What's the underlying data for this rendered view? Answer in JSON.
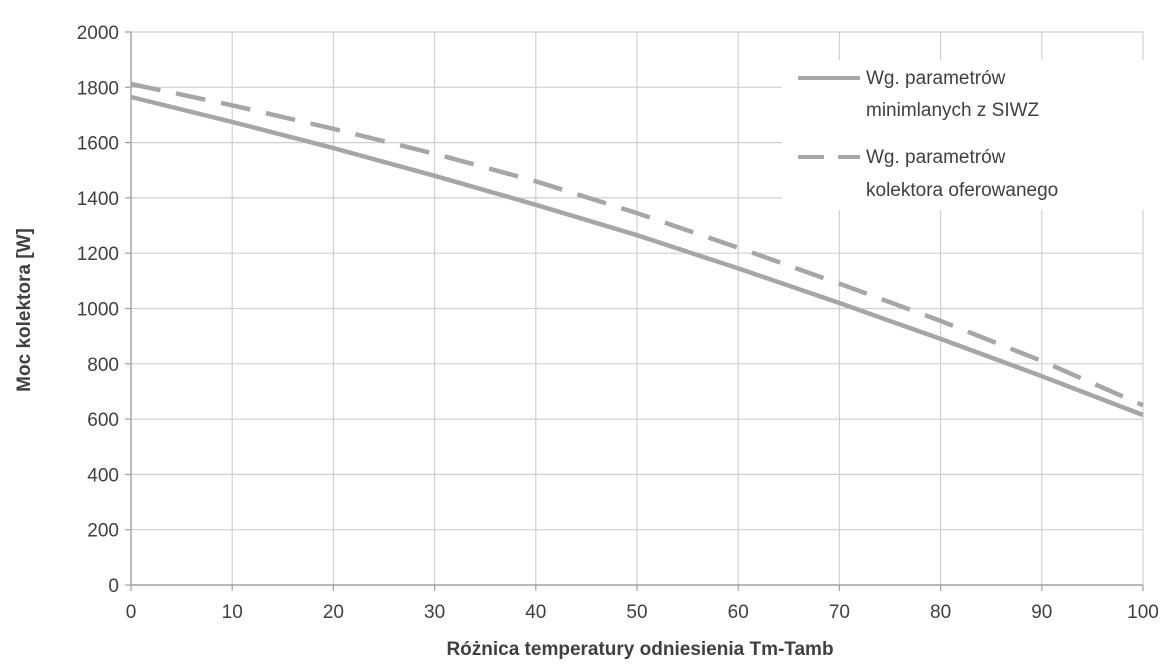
{
  "chart_data": {
    "type": "line",
    "title": "",
    "xlabel": "Różnica temperatury odniesienia Tm-Tamb",
    "ylabel": "Moc kolektora [W]",
    "xlim": [
      0,
      100
    ],
    "ylim": [
      0,
      2000
    ],
    "x_ticks": [
      0,
      10,
      20,
      30,
      40,
      50,
      60,
      70,
      80,
      90,
      100
    ],
    "y_ticks": [
      0,
      200,
      400,
      600,
      800,
      1000,
      1200,
      1400,
      1600,
      1800,
      2000
    ],
    "grid": true,
    "legend_position": "top-right",
    "x": [
      0,
      10,
      20,
      30,
      40,
      50,
      60,
      70,
      80,
      90,
      100
    ],
    "series": [
      {
        "name_lines": [
          "Wg. parametrów",
          "minimlanych z SIWZ"
        ],
        "style": "solid",
        "color": "#a6a6a6",
        "values": [
          1765,
          1675,
          1580,
          1480,
          1375,
          1265,
          1145,
          1020,
          890,
          755,
          615
        ]
      },
      {
        "name_lines": [
          "Wg. parametrów",
          "kolektora oferowanego"
        ],
        "style": "dashed",
        "color": "#a6a6a6",
        "values": [
          1812,
          1735,
          1650,
          1560,
          1460,
          1345,
          1220,
          1090,
          955,
          810,
          650
        ]
      }
    ]
  }
}
